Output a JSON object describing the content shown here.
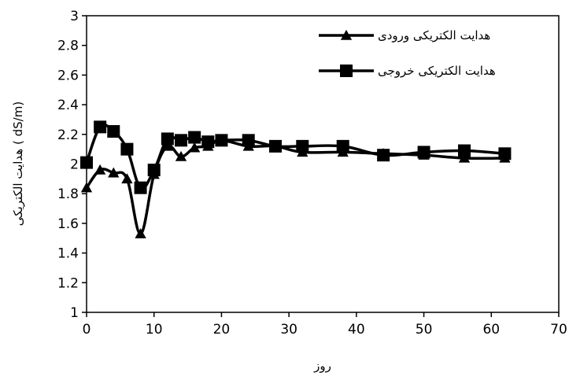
{
  "chart_data": {
    "type": "line",
    "title": "",
    "xlabel": "روز",
    "ylabel": "هدایت الکتریکی  ( dS/m)",
    "xlim": [
      0,
      70
    ],
    "ylim": [
      1,
      3
    ],
    "xticks": [
      0,
      10,
      20,
      30,
      40,
      50,
      60,
      70
    ],
    "yticks": [
      1,
      1.2,
      1.4,
      1.6,
      1.8,
      2,
      2.2,
      2.4,
      2.6,
      2.8,
      3
    ],
    "grid": false,
    "legend_position": "top-right",
    "series": [
      {
        "name": "هدایت الکتریکی ورودی",
        "marker": "triangle",
        "color": "#000000",
        "x": [
          0,
          2,
          4,
          6,
          8,
          10,
          12,
          14,
          16,
          18,
          20,
          24,
          28,
          32,
          38,
          44,
          50,
          56,
          62
        ],
        "y": [
          1.84,
          1.96,
          1.94,
          1.9,
          1.53,
          1.93,
          2.12,
          2.05,
          2.11,
          2.12,
          2.16,
          2.12,
          2.12,
          2.08,
          2.08,
          2.07,
          2.06,
          2.04,
          2.04
        ]
      },
      {
        "name": "هدایت الکتریکی خروجی",
        "marker": "square",
        "color": "#000000",
        "x": [
          0,
          2,
          4,
          6,
          8,
          10,
          12,
          14,
          16,
          18,
          20,
          24,
          28,
          32,
          38,
          44,
          50,
          56,
          62
        ],
        "y": [
          2.01,
          2.25,
          2.22,
          2.1,
          1.84,
          1.96,
          2.17,
          2.16,
          2.18,
          2.15,
          2.16,
          2.16,
          2.12,
          2.12,
          2.12,
          2.06,
          2.08,
          2.09,
          2.07
        ]
      }
    ]
  }
}
